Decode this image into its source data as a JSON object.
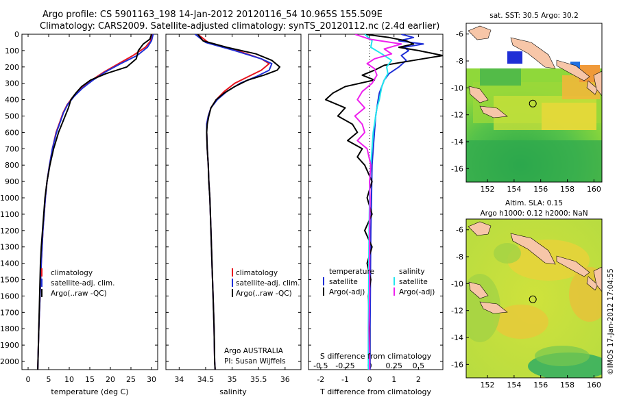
{
  "header": {
    "line1": "Argo profile: CS 5901163_198 14-Jan-2012 20120116_54 10.965S 155.509E",
    "line2": "Climatology: CARS2009. Satellite-adjusted climatology: synTS_20120112.nc (2.4d earlier)"
  },
  "colors": {
    "climatology": "#e8141e",
    "satellite": "#1f2fd6",
    "argo": "#000000",
    "salinity_satellite": "#20e6ee",
    "salinity_argo": "#ee20ee"
  },
  "depth_axis": {
    "ticks": [
      "0",
      "100",
      "200",
      "300",
      "400",
      "500",
      "600",
      "700",
      "800",
      "900",
      "1000",
      "1100",
      "1200",
      "1300",
      "1400",
      "1500",
      "1600",
      "1700",
      "1800",
      "1900",
      "2000"
    ]
  },
  "chart_data": [
    {
      "type": "line",
      "name": "temperature-panel",
      "xlabel": "temperature (deg C)",
      "xlim": [
        -1.5,
        31.5
      ],
      "ylim": [
        2050,
        0
      ],
      "xticks": [
        "0",
        "5",
        "10",
        "15",
        "20",
        "25",
        "30"
      ],
      "legend": [
        "climatology",
        "satellite-adj. clim.",
        "Argo(..raw -QC)"
      ],
      "series": [
        {
          "name": "climatology",
          "color_key": "climatology",
          "depth": [
            0,
            40,
            80,
            130,
            180,
            230,
            280,
            330,
            380,
            430,
            480,
            530,
            600,
            700,
            800,
            900,
            1000,
            1200,
            1400,
            1600,
            1800,
            2000,
            2050
          ],
          "values": [
            30.2,
            29.8,
            28.5,
            25.5,
            22.0,
            18.5,
            15.5,
            13.0,
            11.0,
            9.5,
            8.5,
            7.8,
            6.8,
            5.9,
            5.2,
            4.6,
            4.2,
            3.6,
            3.2,
            2.9,
            2.6,
            2.4,
            2.35
          ]
        },
        {
          "name": "satellite-adj. clim.",
          "color_key": "satellite",
          "depth": [
            0,
            40,
            80,
            130,
            180,
            230,
            280,
            330,
            380,
            430,
            480,
            530,
            600,
            700,
            800,
            900,
            1000,
            1200,
            1400,
            1600,
            1800,
            2000,
            2050
          ],
          "values": [
            30.4,
            30.0,
            29.0,
            26.5,
            22.5,
            18.8,
            15.8,
            13.2,
            11.2,
            9.6,
            8.6,
            7.9,
            6.9,
            5.9,
            5.2,
            4.6,
            4.2,
            3.6,
            3.2,
            2.9,
            2.6,
            2.4,
            2.35
          ]
        },
        {
          "name": "Argo(..raw -QC)",
          "color_key": "argo",
          "depth": [
            0,
            30,
            60,
            100,
            150,
            200,
            240,
            280,
            320,
            360,
            400,
            450,
            500,
            550,
            600,
            700,
            800,
            900,
            1000,
            1100,
            1200,
            1300,
            1400,
            1600,
            1800,
            2000,
            2050
          ],
          "values": [
            30.0,
            29.6,
            28.0,
            26.8,
            26.3,
            24.0,
            19.0,
            15.2,
            13.0,
            11.6,
            10.4,
            9.8,
            9.0,
            8.2,
            7.4,
            6.2,
            5.3,
            4.6,
            4.1,
            3.8,
            3.5,
            3.2,
            3.0,
            2.8,
            2.6,
            2.4,
            2.35
          ]
        }
      ]
    },
    {
      "type": "line",
      "name": "salinity-panel",
      "xlabel": "salinity",
      "xlim": [
        33.75,
        36.3
      ],
      "ylim": [
        2050,
        0
      ],
      "xticks": [
        "34",
        "34.5",
        "35",
        "35.5",
        "36"
      ],
      "legend": [
        "climatology",
        "satellite-adj. clim.",
        "Argo(..raw -QC)"
      ],
      "annotations": [
        "Argo AUSTRALIA",
        "PI: Susan Wijffels"
      ],
      "series": [
        {
          "name": "climatology",
          "color_key": "climatology",
          "depth": [
            0,
            50,
            100,
            150,
            180,
            220,
            260,
            300,
            350,
            400,
            450,
            500,
            550,
            600,
            700,
            800,
            900,
            1000,
            1200,
            1400,
            1600,
            1800,
            2000,
            2050
          ],
          "values": [
            34.35,
            34.55,
            35.1,
            35.55,
            35.7,
            35.55,
            35.3,
            35.05,
            34.85,
            34.7,
            34.6,
            34.55,
            34.52,
            34.52,
            34.53,
            34.55,
            34.56,
            34.58,
            34.6,
            34.62,
            34.64,
            34.66,
            34.67,
            34.68
          ]
        },
        {
          "name": "satellite-adj. clim.",
          "color_key": "satellite",
          "depth": [
            0,
            50,
            100,
            150,
            180,
            220,
            260,
            300,
            350,
            400,
            450,
            500,
            550,
            600,
            700,
            800,
            900,
            1000,
            1200,
            1400,
            1600,
            1800,
            2000,
            2050
          ],
          "values": [
            34.3,
            34.5,
            35.05,
            35.55,
            35.75,
            35.7,
            35.45,
            35.15,
            34.9,
            34.72,
            34.6,
            34.55,
            34.52,
            34.52,
            34.53,
            34.55,
            34.56,
            34.58,
            34.6,
            34.62,
            34.64,
            34.66,
            34.67,
            34.68
          ]
        },
        {
          "name": "Argo(..raw -QC)",
          "color_key": "argo",
          "depth": [
            0,
            40,
            80,
            120,
            160,
            200,
            220,
            250,
            280,
            320,
            360,
            400,
            450,
            500,
            550,
            600,
            700,
            800,
            900,
            1000,
            1200,
            1400,
            1600,
            1800,
            2000,
            2050
          ],
          "values": [
            34.35,
            34.45,
            34.9,
            35.45,
            35.75,
            35.9,
            35.85,
            35.6,
            35.3,
            35.05,
            34.85,
            34.7,
            34.6,
            34.56,
            34.53,
            34.52,
            34.53,
            34.55,
            34.56,
            34.58,
            34.6,
            34.62,
            34.64,
            34.66,
            34.67,
            34.68
          ]
        }
      ]
    },
    {
      "type": "line",
      "name": "difference-panel",
      "xlabel": "T difference from climatology",
      "xlabel_top": "S difference from climatology",
      "xlim": [
        -2.5,
        3.0
      ],
      "ylim": [
        2050,
        0
      ],
      "xticks": [
        "-2",
        "-1",
        "0",
        "1",
        "2"
      ],
      "xticks_S": [
        "-0.5",
        "-0.25",
        "0",
        "0.25",
        "0.5"
      ],
      "legend_titles": [
        "temperature",
        "salinity"
      ],
      "legend": [
        "satellite",
        "Argo(-adj)",
        "satellite",
        "Argo(-adj)"
      ],
      "series": [
        {
          "name": "temperature satellite",
          "color_key": "satellite",
          "depth": [
            0,
            20,
            40,
            60,
            80,
            100,
            130,
            160,
            200,
            240,
            280,
            320,
            360,
            400,
            450,
            500,
            600,
            700,
            800,
            1000,
            1200,
            1400,
            1600,
            1800,
            2050
          ],
          "values": [
            1.3,
            1.8,
            1.2,
            2.2,
            1.4,
            1.6,
            1.3,
            1.5,
            1.2,
            0.8,
            0.6,
            0.5,
            0.4,
            0.35,
            0.3,
            0.25,
            0.2,
            0.15,
            0.1,
            0.08,
            0.05,
            0.04,
            0.03,
            0.02,
            0.02
          ]
        },
        {
          "name": "temperature Argo(-adj)",
          "color_key": "argo",
          "depth": [
            0,
            20,
            40,
            60,
            80,
            100,
            130,
            160,
            190,
            220,
            250,
            280,
            320,
            360,
            400,
            450,
            500,
            550,
            600,
            650,
            700,
            750,
            800,
            900,
            1000,
            1100,
            1200,
            1300,
            1400,
            1500,
            1600,
            1800,
            2050
          ],
          "values": [
            -0.2,
            0.8,
            1.5,
            1.8,
            1.2,
            2.0,
            3.0,
            1.8,
            0.6,
            0.2,
            -0.3,
            0.2,
            -1.0,
            -1.5,
            -1.8,
            -1.0,
            -1.3,
            -0.7,
            -0.5,
            -0.9,
            -0.3,
            -0.5,
            -0.2,
            0.1,
            -0.1,
            0.1,
            -0.2,
            0.1,
            -0.1,
            0.05,
            -0.05,
            0.0,
            0.0
          ]
        },
        {
          "name": "salinity satellite",
          "color_key": "salinity_satellite",
          "depth": [
            0,
            40,
            80,
            120,
            160,
            200,
            240,
            280,
            320,
            360,
            400,
            450,
            500,
            600,
            700,
            800,
            900,
            1000,
            1200,
            1400,
            1600,
            1800,
            2000,
            2050
          ],
          "values": [
            -0.2,
            0.1,
            0.05,
            0.5,
            0.9,
            0.7,
            0.75,
            0.6,
            0.5,
            0.45,
            0.4,
            0.3,
            0.25,
            0.15,
            0.1,
            0.05,
            0.0,
            0.0,
            -0.02,
            -0.03,
            -0.04,
            -0.05,
            -0.05,
            -0.05
          ]
        },
        {
          "name": "salinity Argo(-adj)",
          "color_key": "salinity_argo",
          "depth": [
            0,
            30,
            60,
            90,
            120,
            150,
            180,
            210,
            250,
            300,
            350,
            400,
            450,
            500,
            550,
            600,
            650,
            700,
            800,
            900,
            1000,
            1200,
            1400,
            1600,
            1800,
            2000,
            2050
          ],
          "values": [
            -0.6,
            0.0,
            1.3,
            0.6,
            0.9,
            0.2,
            -0.1,
            0.2,
            0.3,
            0.1,
            -0.3,
            -0.5,
            -0.2,
            -0.6,
            -0.3,
            -0.2,
            -0.5,
            -0.1,
            0.05,
            0.0,
            0.02,
            0.0,
            0.0,
            0.0,
            -0.02,
            0.0,
            0.0
          ]
        }
      ]
    },
    {
      "type": "heatmap",
      "name": "sst-map",
      "title": "sat. SST: 30.5 Argo: 30.2",
      "xlim": [
        150.4,
        160.6
      ],
      "ylim": [
        -17,
        -5.2
      ],
      "xticks": [
        "152",
        "154",
        "156",
        "158",
        "160"
      ],
      "yticks": [
        "-6",
        "-8",
        "-10",
        "-12",
        "-14",
        "-16"
      ],
      "argo_position": {
        "lon": 155.509,
        "lat": -10.965
      }
    },
    {
      "type": "heatmap",
      "name": "sla-map",
      "title1": "Altim. SLA: 0.15",
      "title2": "Argo h1000: 0.12 h2000: NaN",
      "xlim": [
        150.4,
        160.6
      ],
      "ylim": [
        -17,
        -5.2
      ],
      "xticks": [
        "152",
        "154",
        "156",
        "158",
        "160"
      ],
      "yticks": [
        "-6",
        "-8",
        "-10",
        "-12",
        "-14",
        "-16"
      ],
      "argo_position": {
        "lon": 155.509,
        "lat": -10.965
      }
    }
  ],
  "footer": {
    "stamp": "©IMOS 17-Jan-2012 17:04:55"
  }
}
